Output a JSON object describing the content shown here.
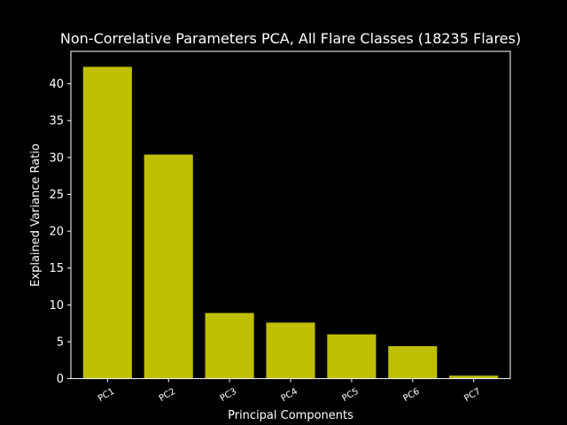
{
  "chart_data": {
    "type": "bar",
    "title": "Non-Correlative Parameters PCA, All Flare Classes (18235 Flares)",
    "xlabel": "Principal Components",
    "ylabel": "Explained Variance Ratio",
    "categories": [
      "PC1",
      "PC2",
      "PC3",
      "PC4",
      "PC5",
      "PC6",
      "PC7"
    ],
    "values": [
      42.3,
      30.4,
      8.9,
      7.6,
      6.0,
      4.4,
      0.4
    ],
    "ylim": [
      0,
      44.4
    ],
    "yticks": [
      0,
      5,
      10,
      15,
      20,
      25,
      30,
      35,
      40
    ],
    "grid": false,
    "bar_color": "#bfbf00",
    "background": "#000000",
    "axis_color": "#ffffff"
  }
}
